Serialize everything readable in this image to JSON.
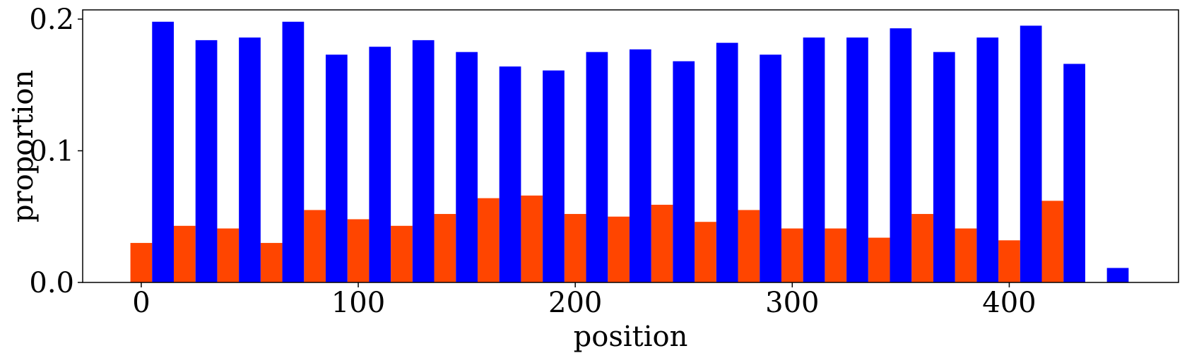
{
  "chart_data": {
    "type": "bar",
    "xlabel": "position",
    "ylabel": "proportion",
    "xlim": [
      -27,
      478
    ],
    "ylim": [
      0,
      0.207
    ],
    "xticks": [
      0,
      100,
      200,
      300,
      400
    ],
    "xtick_labels": [
      "0",
      "100",
      "200",
      "300",
      "400"
    ],
    "yticks": [
      0.0,
      0.1,
      0.2
    ],
    "ytick_labels": [
      "0.0",
      "0.1",
      "0.2"
    ],
    "grid": false,
    "bar_width": 10,
    "series": [
      {
        "color": "#ff4500",
        "x": [
          0,
          20,
          40,
          60,
          80,
          100,
          120,
          140,
          160,
          180,
          200,
          220,
          240,
          260,
          280,
          300,
          320,
          340,
          360,
          380,
          400,
          420
        ],
        "values": [
          0.03,
          0.043,
          0.041,
          0.03,
          0.055,
          0.048,
          0.043,
          0.052,
          0.064,
          0.066,
          0.052,
          0.05,
          0.059,
          0.046,
          0.055,
          0.041,
          0.041,
          0.034,
          0.052,
          0.041,
          0.032,
          0.062
        ]
      },
      {
        "color": "#0000ff",
        "x": [
          10,
          30,
          50,
          70,
          90,
          110,
          130,
          150,
          170,
          190,
          210,
          230,
          250,
          270,
          290,
          310,
          330,
          350,
          370,
          390,
          410,
          430,
          450
        ],
        "values": [
          0.198,
          0.184,
          0.186,
          0.198,
          0.173,
          0.179,
          0.184,
          0.175,
          0.164,
          0.161,
          0.175,
          0.177,
          0.168,
          0.182,
          0.173,
          0.186,
          0.186,
          0.193,
          0.175,
          0.186,
          0.195,
          0.166,
          0.011
        ]
      }
    ]
  }
}
